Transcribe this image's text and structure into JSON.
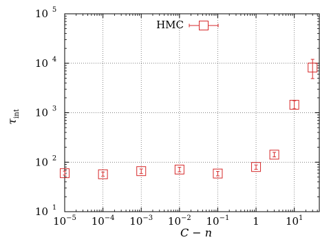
{
  "chart_data": {
    "type": "scatter",
    "title": "",
    "xlabel": "C − n",
    "ylabel": "τ",
    "ylabel_subscript": "int",
    "x_scale": "log",
    "y_scale": "log",
    "xlim": [
      1e-05,
      45
    ],
    "ylim": [
      10,
      100000
    ],
    "grid": true,
    "grid_style": "dotted",
    "legend_position": "top-center",
    "x_ticks": [
      {
        "value": 1e-05,
        "base": "10",
        "exp": "−5"
      },
      {
        "value": 0.0001,
        "base": "10",
        "exp": "−4"
      },
      {
        "value": 0.001,
        "base": "10",
        "exp": "−3"
      },
      {
        "value": 0.01,
        "base": "10",
        "exp": "−2"
      },
      {
        "value": 0.1,
        "base": "10",
        "exp": "−1"
      },
      {
        "value": 1,
        "base": "1",
        "exp": ""
      },
      {
        "value": 10,
        "base": "10",
        "exp": "1"
      }
    ],
    "y_ticks": [
      {
        "value": 10,
        "base": "10",
        "exp": "1"
      },
      {
        "value": 100,
        "base": "10",
        "exp": "2"
      },
      {
        "value": 1000,
        "base": "10",
        "exp": "3"
      },
      {
        "value": 10000,
        "base": "10",
        "exp": "4"
      },
      {
        "value": 100000,
        "base": "10",
        "exp": "5"
      }
    ],
    "series": [
      {
        "name": "HMC",
        "color": "#d62728",
        "marker": "open-square",
        "points": [
          {
            "x": 1e-05,
            "y": 60,
            "yerr_low": 55,
            "yerr_high": 66
          },
          {
            "x": 0.0001,
            "y": 57,
            "yerr_low": 52,
            "yerr_high": 63
          },
          {
            "x": 0.001,
            "y": 66,
            "yerr_low": 59,
            "yerr_high": 73
          },
          {
            "x": 0.01,
            "y": 71,
            "yerr_low": 64,
            "yerr_high": 79
          },
          {
            "x": 0.1,
            "y": 59,
            "yerr_low": 53,
            "yerr_high": 65
          },
          {
            "x": 1,
            "y": 80,
            "yerr_low": 72,
            "yerr_high": 88
          },
          {
            "x": 3,
            "y": 142,
            "yerr_low": 128,
            "yerr_high": 158
          },
          {
            "x": 10,
            "y": 1450,
            "yerr_low": 1200,
            "yerr_high": 1750
          },
          {
            "x": 30,
            "y": 8200,
            "yerr_low": 4900,
            "yerr_high": 12000
          }
        ]
      }
    ]
  }
}
